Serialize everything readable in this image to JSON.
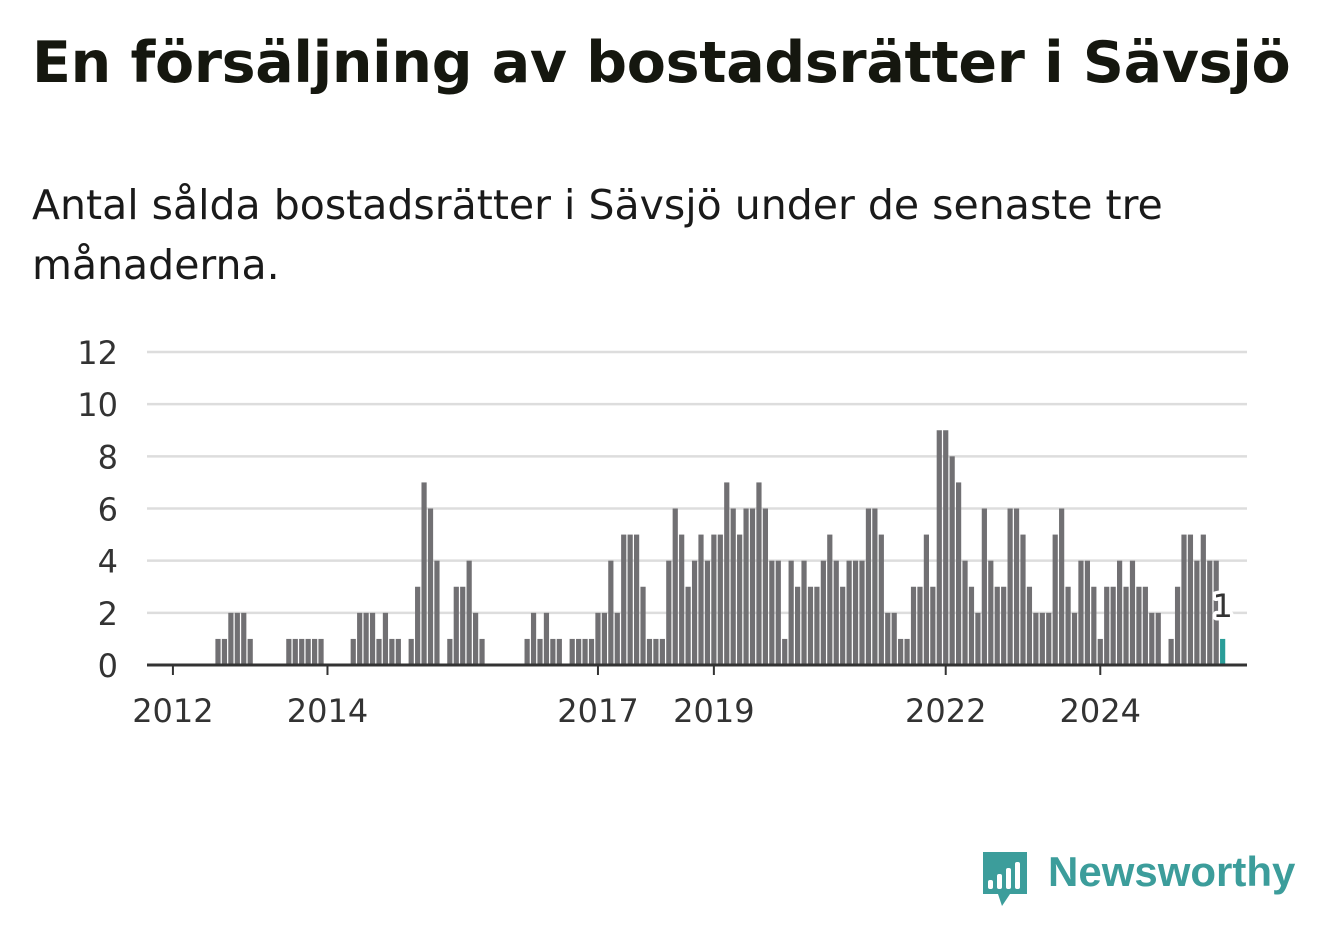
{
  "title": "En försäljning av bostadsrätter i Sävsjö",
  "subtitle": "Antal sålda bostadsrätter i Sävsjö under de senaste tre månaderna.",
  "brand": {
    "name": "Newsworthy",
    "icon": "bar-chart-speech-bubble-icon",
    "color": "#3c9d9b"
  },
  "colors": {
    "bar": "#717073",
    "highlight": "#2a9d98",
    "grid": "#dddddd",
    "axis": "#333333"
  },
  "chart_data": {
    "type": "bar",
    "x_start": "2011-10",
    "frequency": "monthly",
    "values": [
      0,
      0,
      0,
      0,
      0,
      0,
      0,
      0,
      0,
      0,
      1,
      1,
      2,
      2,
      2,
      1,
      0,
      0,
      0,
      0,
      0,
      1,
      1,
      1,
      1,
      1,
      1,
      0,
      0,
      0,
      0,
      1,
      2,
      2,
      2,
      1,
      2,
      1,
      1,
      0,
      1,
      3,
      7,
      6,
      4,
      0,
      1,
      3,
      3,
      4,
      2,
      1,
      0,
      0,
      0,
      0,
      0,
      0,
      1,
      2,
      1,
      2,
      1,
      1,
      0,
      1,
      1,
      1,
      1,
      2,
      2,
      4,
      2,
      5,
      5,
      5,
      3,
      1,
      1,
      1,
      4,
      6,
      5,
      3,
      4,
      5,
      4,
      5,
      5,
      7,
      6,
      5,
      6,
      6,
      7,
      6,
      4,
      4,
      1,
      4,
      3,
      4,
      3,
      3,
      4,
      5,
      4,
      3,
      4,
      4,
      4,
      6,
      6,
      5,
      2,
      2,
      1,
      1,
      3,
      3,
      5,
      3,
      9,
      9,
      8,
      7,
      4,
      3,
      2,
      6,
      4,
      3,
      3,
      6,
      6,
      5,
      3,
      2,
      2,
      2,
      5,
      6,
      3,
      2,
      4,
      4,
      3,
      1,
      3,
      3,
      4,
      3,
      4,
      3,
      3,
      2,
      2,
      0,
      1,
      3,
      5,
      5,
      4,
      5,
      4,
      4,
      1
    ],
    "highlight_last": true,
    "highlight_label": "1",
    "x_ticks": [
      {
        "label": "2012",
        "date": "2012-01"
      },
      {
        "label": "2014",
        "date": "2014-01"
      },
      {
        "label": "2017",
        "date": "2017-07"
      },
      {
        "label": "2019",
        "date": "2019-01"
      },
      {
        "label": "2022",
        "date": "2022-01"
      },
      {
        "label": "2024",
        "date": "2024-01"
      }
    ],
    "y_ticks": [
      0,
      2,
      4,
      6,
      8,
      10,
      12
    ],
    "ylim": [
      0,
      12
    ],
    "grid": true,
    "xlabel": "",
    "ylabel": ""
  }
}
